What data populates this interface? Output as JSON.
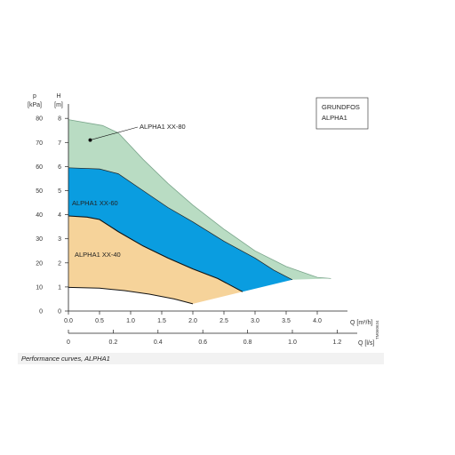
{
  "chart_data": {
    "type": "area",
    "title": "",
    "brand_box": {
      "line1": "GRUNDFOS",
      "line2": "ALPHA1"
    },
    "left_axes": {
      "p": {
        "name": "p",
        "unit": "[kPa]",
        "range": [
          0,
          80
        ],
        "ticks": [
          0,
          10,
          20,
          30,
          40,
          50,
          60,
          70,
          80
        ]
      },
      "H": {
        "name": "H",
        "unit": "[m]",
        "range": [
          0,
          8
        ],
        "ticks": [
          0,
          1,
          2,
          3,
          4,
          5,
          6,
          7,
          8
        ]
      }
    },
    "x_axis_m3h": {
      "label": "Q [m³/h]",
      "range": [
        0,
        4.2
      ],
      "ticks": [
        "0.0",
        "0.5",
        "1.0",
        "1.5",
        "2.0",
        "2.5",
        "3.0",
        "3.5",
        "4.0"
      ]
    },
    "x_axis_ls": {
      "label": "Q [l/s]",
      "range": [
        0,
        1.2
      ],
      "ticks": [
        "0",
        "0.2",
        "0.4",
        "0.6",
        "0.8",
        "1.0",
        "1.2"
      ]
    },
    "series": [
      {
        "name": "ALPHA1 XX-80",
        "fill": "#b9dcc3",
        "upper": [
          [
            0,
            7.95
          ],
          [
            0.55,
            7.7
          ],
          [
            0.8,
            7.4
          ],
          [
            1.2,
            6.3
          ],
          [
            1.6,
            5.3
          ],
          [
            2.0,
            4.4
          ],
          [
            2.5,
            3.4
          ],
          [
            3.0,
            2.5
          ],
          [
            3.5,
            1.85
          ],
          [
            4.0,
            1.4
          ],
          [
            4.22,
            1.35
          ]
        ],
        "lower": [
          [
            0,
            5.95
          ],
          [
            0.5,
            5.9
          ],
          [
            0.8,
            5.7
          ],
          [
            1.2,
            5.0
          ],
          [
            1.6,
            4.3
          ],
          [
            2.0,
            3.7
          ],
          [
            2.5,
            2.9
          ],
          [
            3.0,
            2.2
          ],
          [
            3.3,
            1.7
          ],
          [
            3.6,
            1.3
          ]
        ]
      },
      {
        "name": "ALPHA1 XX-60",
        "fill": "#0a9de0",
        "upper": [
          [
            0,
            5.95
          ],
          [
            0.5,
            5.9
          ],
          [
            0.8,
            5.7
          ],
          [
            1.2,
            5.0
          ],
          [
            1.6,
            4.3
          ],
          [
            2.0,
            3.7
          ],
          [
            2.5,
            2.9
          ],
          [
            3.0,
            2.2
          ],
          [
            3.3,
            1.7
          ],
          [
            3.6,
            1.3
          ]
        ],
        "lower": [
          [
            0,
            3.95
          ],
          [
            0.3,
            3.9
          ],
          [
            0.5,
            3.8
          ],
          [
            0.8,
            3.3
          ],
          [
            1.2,
            2.7
          ],
          [
            1.6,
            2.2
          ],
          [
            2.0,
            1.75
          ],
          [
            2.4,
            1.35
          ],
          [
            2.8,
            0.8
          ]
        ]
      },
      {
        "name": "ALPHA1 XX-40",
        "fill": "#f6d39a",
        "upper": [
          [
            0,
            3.95
          ],
          [
            0.3,
            3.9
          ],
          [
            0.5,
            3.8
          ],
          [
            0.8,
            3.3
          ],
          [
            1.2,
            2.7
          ],
          [
            1.6,
            2.2
          ],
          [
            2.0,
            1.75
          ],
          [
            2.4,
            1.35
          ],
          [
            2.8,
            0.8
          ]
        ],
        "lower": [
          [
            0,
            0.98
          ],
          [
            0.5,
            0.95
          ],
          [
            0.9,
            0.85
          ],
          [
            1.3,
            0.7
          ],
          [
            1.7,
            0.5
          ],
          [
            2.0,
            0.3
          ]
        ]
      }
    ],
    "annotations": {
      "xx80_label": "ALPHA1 XX-80",
      "xx60_label": "ALPHA1 XX-60",
      "xx40_label": "ALPHA1 XX-40",
      "xx80_marker": [
        0.35,
        7.1
      ]
    },
    "caption": "Performance curves, ALPHA1",
    "ref_code": "TM060634"
  }
}
